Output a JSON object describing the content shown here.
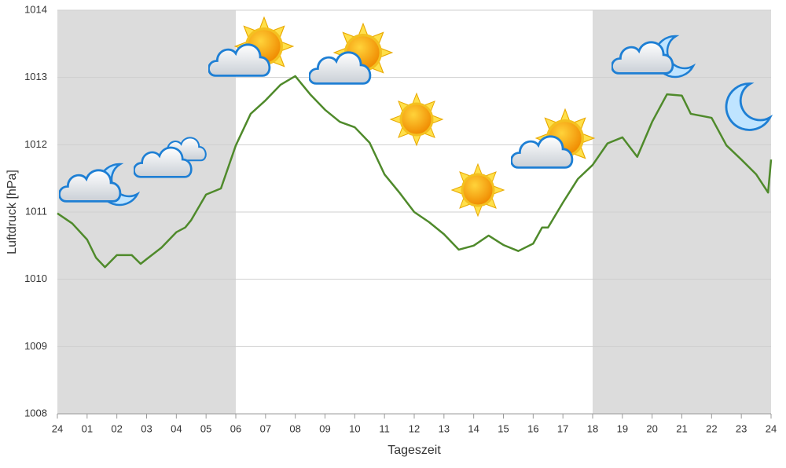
{
  "chart_data": {
    "type": "line",
    "y_label": "Luftdruck [hPa]",
    "x_label": "Tageszeit",
    "x": [
      0,
      0.5,
      1,
      1.3,
      1.6,
      2,
      2.5,
      2.8,
      3,
      3.5,
      4,
      4.3,
      4.5,
      5,
      5.5,
      6,
      6.5,
      7,
      7.5,
      8,
      8.5,
      9,
      9.5,
      10,
      10.5,
      11,
      11.5,
      12,
      12.5,
      13,
      13.5,
      14,
      14.5,
      15,
      15.5,
      16,
      16.3,
      16.5,
      17,
      17.5,
      18,
      18.5,
      19,
      19.5,
      20,
      20.5,
      21,
      21.3,
      22,
      22.5,
      23,
      23.5,
      23.9,
      24
    ],
    "series": [
      {
        "name": "Luftdruck",
        "color": "#4f8a2b",
        "values": [
          1010.98,
          1010.83,
          1010.59,
          1010.32,
          1010.18,
          1010.36,
          1010.36,
          1010.23,
          1010.3,
          1010.47,
          1010.7,
          1010.77,
          1010.88,
          1011.26,
          1011.35,
          1011.99,
          1012.46,
          1012.66,
          1012.89,
          1013.02,
          1012.75,
          1012.52,
          1012.34,
          1012.26,
          1012.03,
          1011.56,
          1011.29,
          1011.0,
          1010.85,
          1010.67,
          1010.44,
          1010.5,
          1010.65,
          1010.51,
          1010.42,
          1010.53,
          1010.77,
          1010.77,
          1011.14,
          1011.49,
          1011.7,
          1012.02,
          1012.11,
          1011.82,
          1012.34,
          1012.75,
          1012.73,
          1012.46,
          1012.4,
          1011.99,
          1011.78,
          1011.56,
          1011.29,
          1011.78
        ]
      }
    ],
    "xlim": [
      0,
      24
    ],
    "xticks": [
      {
        "value": 0,
        "label": "24"
      },
      {
        "value": 1,
        "label": "01"
      },
      {
        "value": 2,
        "label": "02"
      },
      {
        "value": 3,
        "label": "03"
      },
      {
        "value": 4,
        "label": "04"
      },
      {
        "value": 5,
        "label": "05"
      },
      {
        "value": 6,
        "label": "06"
      },
      {
        "value": 7,
        "label": "07"
      },
      {
        "value": 8,
        "label": "08"
      },
      {
        "value": 9,
        "label": "09"
      },
      10,
      11,
      12,
      13,
      14,
      15,
      16,
      17,
      18,
      19,
      20,
      21,
      22,
      23,
      24
    ],
    "ylim": [
      1008,
      1014
    ],
    "yticks": [
      1008,
      1009,
      1010,
      1011,
      1012,
      1013,
      1014
    ],
    "grid": true,
    "night": [
      [
        0,
        6
      ],
      [
        18,
        24
      ]
    ],
    "night_color": "#dcdcdc"
  }
}
